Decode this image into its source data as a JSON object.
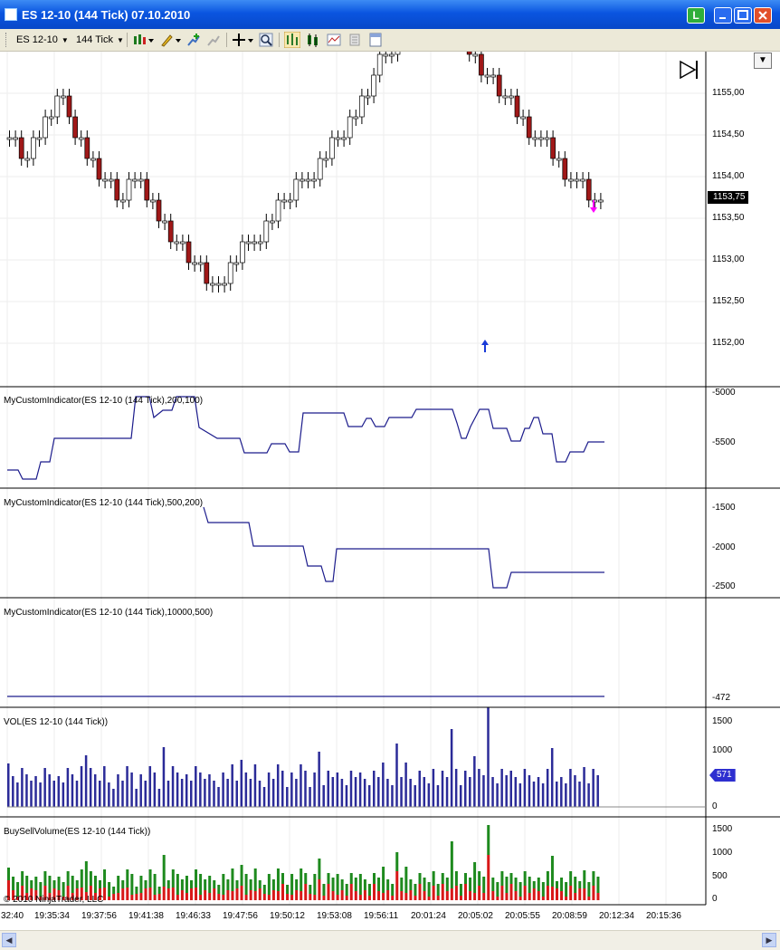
{
  "window": {
    "title": "ES 12-10 (144 Tick)  07.10.2010",
    "l_badge": "L"
  },
  "toolbar": {
    "instrument": "ES 12-10",
    "interval": "144 Tick"
  },
  "price_panel": {
    "axis_labels": [
      "1155,00",
      "1154,50",
      "1154,00",
      "1153,50",
      "1153,00",
      "1152,50",
      "1152,00"
    ],
    "last_price": "1153,75"
  },
  "indicator_panels": [
    {
      "label": "MyCustomIndicator(ES 12-10 (144 Tick),200,100)",
      "axis_labels": [
        "-5000",
        "-5500"
      ]
    },
    {
      "label": "MyCustomIndicator(ES 12-10 (144 Tick),500,200)",
      "axis_labels": [
        "-1500",
        "-2000",
        "-2500"
      ]
    },
    {
      "label": "MyCustomIndicator(ES 12-10 (144 Tick),10000,500)",
      "axis_labels": [
        "-472"
      ]
    },
    {
      "label": "VOL(ES 12-10 (144 Tick))",
      "axis_labels": [
        "1500",
        "1000",
        "0"
      ],
      "last_value": "571"
    },
    {
      "label": "BuySellVolume(ES 12-10 (144 Tick))",
      "axis_labels": [
        "1500",
        "1000",
        "500",
        "0"
      ]
    }
  ],
  "time_axis": [
    "32:40",
    "19:35:34",
    "19:37:56",
    "19:41:38",
    "19:46:33",
    "19:47:56",
    "19:50:12",
    "19:53:08",
    "19:56:11",
    "20:01:24",
    "20:05:02",
    "20:05:55",
    "20:08:59",
    "20:12:34",
    "20:15:36"
  ],
  "copyright": "© 2010 NinjaTrader, LLC",
  "colors": {
    "up_candle": "#ffffff",
    "down_candle": "#a01818",
    "indicator_line": "#1c1c8c",
    "volume_bar": "#2b2b98",
    "buy_volume": "#1e8a1e",
    "sell_volume": "#d81818",
    "buy_arrow": "#1a3bd8",
    "sell_arrow": "#ff00ff",
    "titlebar": "#0a55e0"
  },
  "icons": [
    "chart-style-icon",
    "drawing-pencil-icon",
    "add-indicator-icon",
    "strategy-icon",
    "crosshair-icon",
    "zoom-icon",
    "bar-chart-icon",
    "candlestick-icon",
    "chart-lines-icon",
    "properties-icon",
    "data-box-icon",
    "go-to-end-icon",
    "panel-menu-icon"
  ]
}
